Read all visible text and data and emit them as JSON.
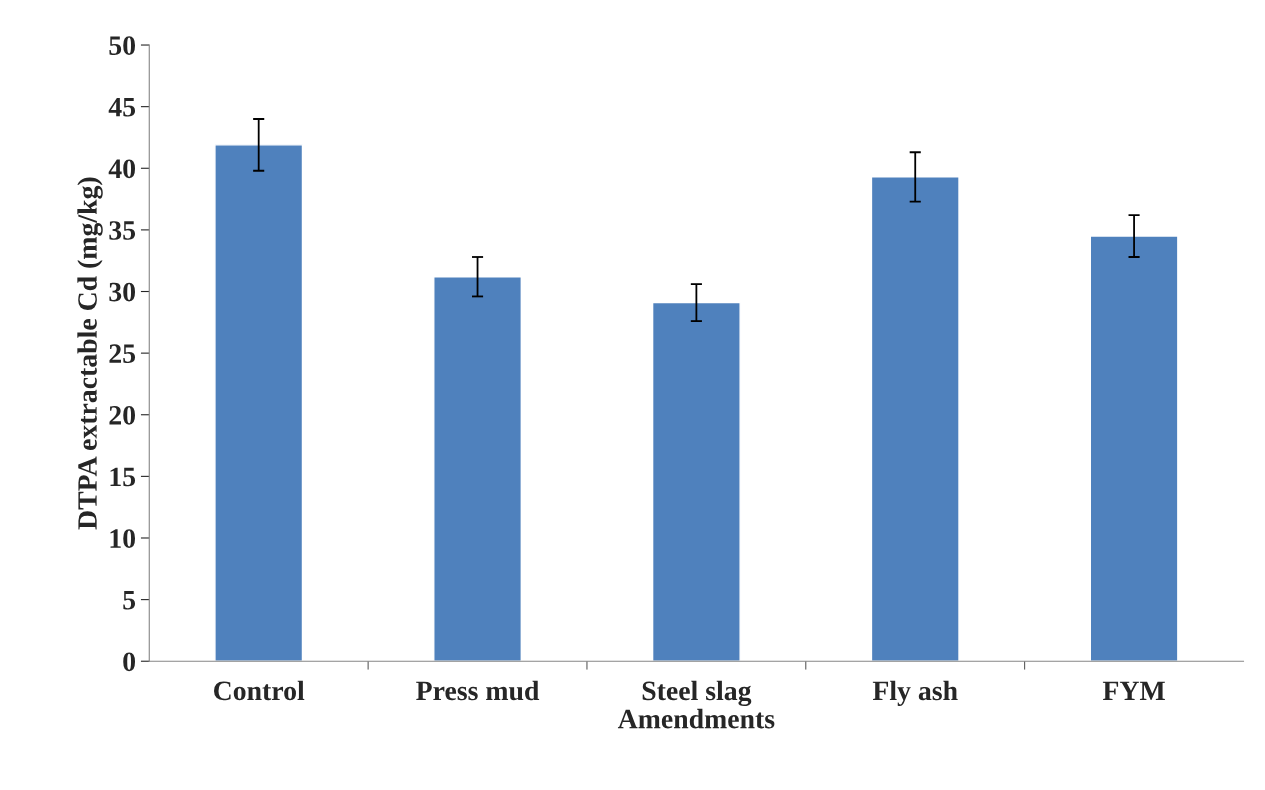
{
  "chart_data": {
    "type": "bar",
    "xlabel": "Amendments",
    "ylabel": "DTPA extractable Cd (mg/kg)",
    "categories": [
      "Control",
      "Press mud",
      "Steel slag",
      "Fly ash",
      "FYM"
    ],
    "values": [
      41.9,
      31.2,
      29.1,
      39.3,
      34.5
    ],
    "errors": [
      2.1,
      1.6,
      1.5,
      2.0,
      1.7
    ],
    "color": "#4f81bd",
    "ylim": [
      0,
      50
    ],
    "yticks": [
      0,
      5,
      10,
      15,
      20,
      25,
      30,
      35,
      40,
      45,
      50
    ],
    "grid": false,
    "legend": false
  }
}
